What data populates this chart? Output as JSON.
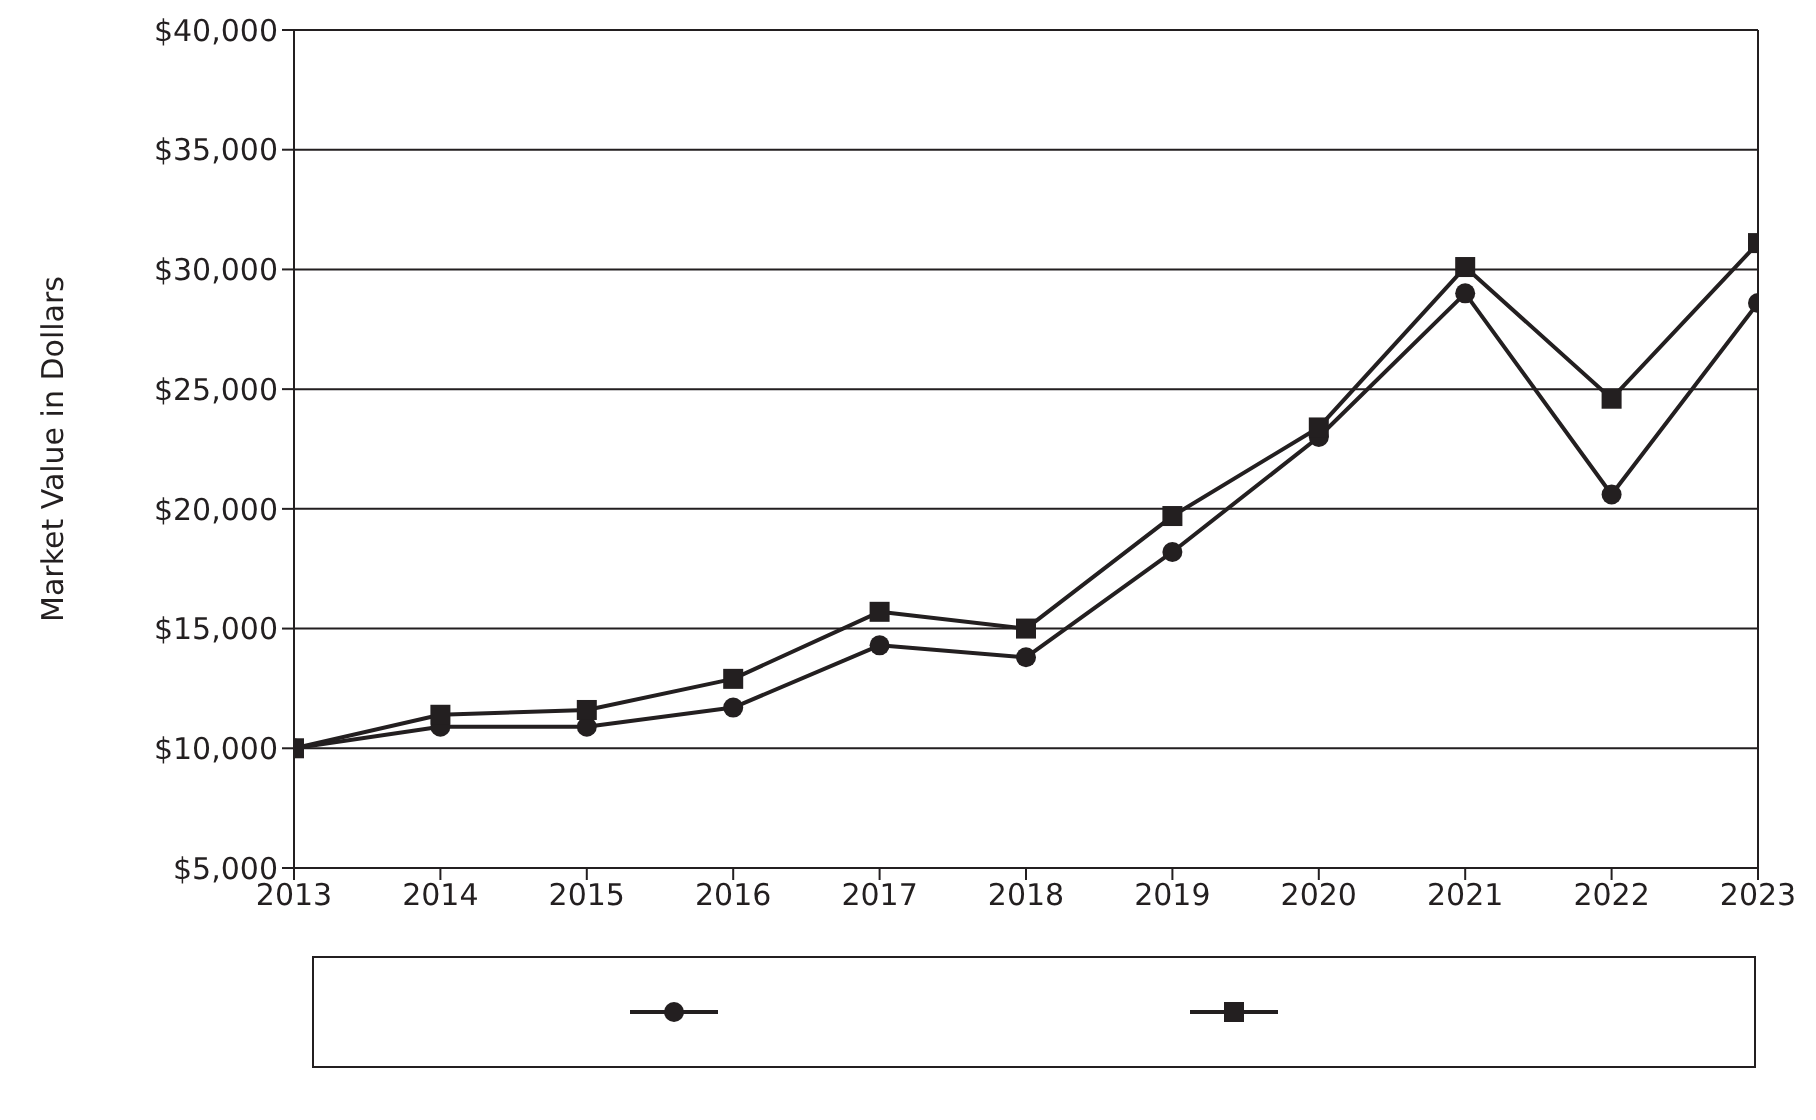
{
  "chart_data": {
    "type": "line",
    "ylabel": "Market Value in Dollars",
    "x": [
      2013,
      2014,
      2015,
      2016,
      2017,
      2018,
      2019,
      2020,
      2021,
      2022,
      2023
    ],
    "series": [
      {
        "color": "#231f20",
        "marker": "circle",
        "values": [
          10000,
          10900,
          10900,
          11700,
          14300,
          13800,
          18200,
          23000,
          29000,
          20600,
          28600
        ]
      },
      {
        "color": "#231f20",
        "marker": "square",
        "values": [
          10000,
          11400,
          11600,
          12900,
          15700,
          15000,
          19700,
          23400,
          30100,
          24600,
          31100
        ]
      }
    ],
    "xlim": [
      2013,
      2023
    ],
    "xticks": [
      2013,
      2014,
      2015,
      2016,
      2017,
      2018,
      2019,
      2020,
      2021,
      2022,
      2023
    ],
    "ylim": [
      5000,
      40000
    ],
    "yticks": [
      {
        "value": 5000,
        "label": "$5,000"
      },
      {
        "value": 10000,
        "label": "$10,000"
      },
      {
        "value": 15000,
        "label": "$15,000"
      },
      {
        "value": 20000,
        "label": "$20,000"
      },
      {
        "value": 25000,
        "label": "$25,000"
      },
      {
        "value": 30000,
        "label": "$30,000"
      },
      {
        "value": 35000,
        "label": "$35,000"
      },
      {
        "value": 40000,
        "label": "$40,000"
      }
    ],
    "grid": "y",
    "line_style": "solid"
  }
}
